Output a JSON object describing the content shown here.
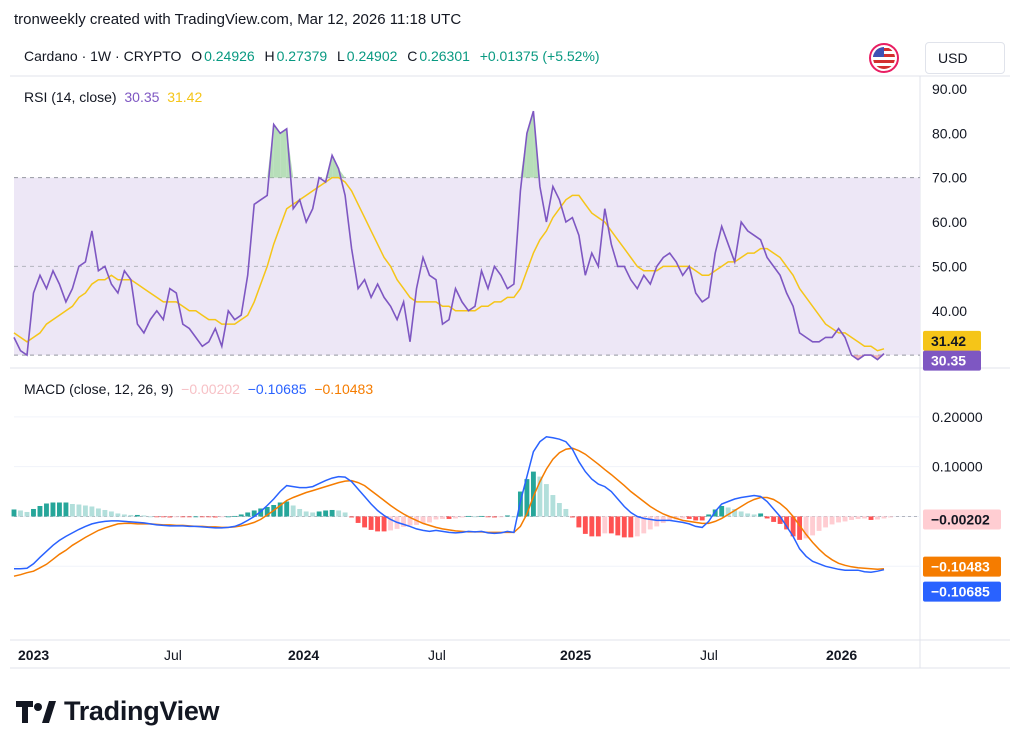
{
  "header": {
    "caption": "tronweekly created with TradingView.com, Mar 12, 2026 11:18 UTC"
  },
  "legend": {
    "symbol": "Cardano · 1W · CRYPTO",
    "o_label": "O",
    "o_value": "0.24926",
    "h_label": "H",
    "h_value": "0.27379",
    "l_label": "L",
    "l_value": "0.24902",
    "c_label": "C",
    "c_value": "0.26301",
    "change": "+0.01375 (+5.52%)"
  },
  "currency": "USD",
  "brand": {
    "name": "TradingView"
  },
  "colors": {
    "rsi": "#7e57c2",
    "rsi_ma": "#f5c518",
    "macd": "#2962ff",
    "signal": "#f57c00",
    "hist_up_strong": "#26a69a",
    "hist_up_weak": "#b2dfdb",
    "hist_down_strong": "#ff5252",
    "hist_down_weak": "#ffcdd2",
    "band_fill": "#ede7f6",
    "up": "#089981"
  },
  "chart_data": [
    {
      "type": "line",
      "title": "RSI (14, close)",
      "legend_values": [
        "30.35",
        "31.42"
      ],
      "ylim": [
        28,
        92
      ],
      "yticks": [
        "90.00",
        "80.00",
        "70.00",
        "60.00",
        "50.00",
        "40.00"
      ],
      "band": [
        30,
        70
      ],
      "midline": 50,
      "last_labels": [
        "31.42",
        "30.35"
      ],
      "series": [
        {
          "name": "RSI",
          "values": [
            34,
            31,
            30,
            44,
            48,
            45,
            49,
            46,
            42,
            45,
            50,
            51,
            58,
            49,
            50,
            46,
            44,
            49,
            47,
            37,
            35,
            38,
            40,
            38,
            45,
            44,
            37,
            36,
            34,
            32,
            33,
            36,
            32,
            40,
            38,
            39,
            48,
            64,
            65,
            66,
            82,
            80,
            81,
            63,
            65,
            60,
            63,
            70,
            69,
            75,
            72,
            66,
            54,
            45,
            47,
            43,
            46,
            43,
            41,
            38,
            42,
            33,
            45,
            52,
            48,
            47,
            37,
            38,
            45,
            42,
            40,
            41,
            49,
            45,
            50,
            48,
            45,
            46,
            67,
            80,
            85,
            68,
            60,
            68,
            65,
            60,
            61,
            57,
            48,
            53,
            50,
            63,
            55,
            50,
            50,
            47,
            45,
            48,
            46,
            50,
            52,
            53,
            51,
            48,
            50,
            44,
            42,
            43,
            53,
            59,
            55,
            51,
            60,
            58,
            57,
            56,
            52,
            50,
            48,
            44,
            41,
            35,
            34,
            33,
            33,
            34,
            34,
            36,
            34,
            30,
            29,
            30,
            30,
            29,
            30.35
          ]
        },
        {
          "name": "RSI MA",
          "values": [
            35,
            34,
            33,
            34,
            35,
            37,
            38,
            39,
            40,
            41,
            43,
            44,
            46,
            47,
            47,
            48,
            47,
            47,
            47,
            46,
            45,
            44,
            43,
            42,
            42,
            42,
            41,
            40,
            40,
            39,
            38,
            38,
            37,
            37,
            37,
            38,
            39,
            42,
            46,
            50,
            55,
            59,
            63,
            64,
            65,
            66,
            67,
            68,
            69,
            70,
            70,
            69,
            67,
            64,
            61,
            58,
            55,
            52,
            50,
            47,
            45,
            43,
            42,
            42,
            42,
            42,
            41,
            41,
            40,
            40,
            40,
            40,
            41,
            41,
            42,
            42,
            43,
            43,
            45,
            49,
            53,
            56,
            58,
            61,
            63,
            65,
            66,
            66,
            64,
            62,
            61,
            60,
            58,
            56,
            54,
            52,
            50,
            49,
            49,
            49,
            50,
            50,
            50,
            50,
            50,
            49,
            48,
            48,
            49,
            50,
            51,
            51,
            52,
            53,
            53,
            54,
            54,
            53,
            52,
            50,
            48,
            45,
            43,
            41,
            39,
            37,
            36,
            35,
            35,
            34,
            33,
            32,
            32,
            31,
            31.42
          ]
        }
      ]
    },
    {
      "type": "line",
      "title": "MACD (close, 12, 26, 9)",
      "legend_values": [
        "−0.00202",
        "−0.10685",
        "−0.10483"
      ],
      "ylim": [
        -0.24,
        0.29
      ],
      "yticks": [
        "0.20000",
        "0.10000"
      ],
      "last_labels": [
        "−0.00202",
        "−0.10483",
        "−0.10685"
      ],
      "x_labels": [
        "2023",
        "Jul",
        "2024",
        "Jul",
        "2025",
        "Jul",
        "2026"
      ],
      "series": [
        {
          "name": "MACD",
          "values": [
            -0.105,
            -0.105,
            -0.104,
            -0.095,
            -0.082,
            -0.07,
            -0.058,
            -0.048,
            -0.04,
            -0.033,
            -0.026,
            -0.02,
            -0.015,
            -0.012,
            -0.01,
            -0.009,
            -0.009,
            -0.01,
            -0.011,
            -0.012,
            -0.013,
            -0.015,
            -0.017,
            -0.018,
            -0.019,
            -0.019,
            -0.019,
            -0.02,
            -0.02,
            -0.021,
            -0.022,
            -0.023,
            -0.023,
            -0.022,
            -0.02,
            -0.015,
            -0.008,
            0.0,
            0.01,
            0.022,
            0.035,
            0.05,
            0.062,
            0.06,
            0.058,
            0.058,
            0.06,
            0.066,
            0.072,
            0.077,
            0.08,
            0.079,
            0.07,
            0.055,
            0.04,
            0.025,
            0.012,
            0.002,
            -0.006,
            -0.012,
            -0.016,
            -0.02,
            -0.025,
            -0.028,
            -0.03,
            -0.028,
            -0.03,
            -0.032,
            -0.033,
            -0.032,
            -0.03,
            -0.031,
            -0.03,
            -0.033,
            -0.034,
            -0.033,
            -0.03,
            -0.032,
            0.03,
            0.08,
            0.13,
            0.15,
            0.16,
            0.158,
            0.155,
            0.15,
            0.135,
            0.11,
            0.09,
            0.075,
            0.065,
            0.06,
            0.05,
            0.035,
            0.02,
            0.008,
            0.0,
            -0.004,
            -0.006,
            -0.008,
            -0.008,
            -0.008,
            -0.01,
            -0.012,
            -0.015,
            -0.02,
            -0.022,
            -0.01,
            0.01,
            0.025,
            0.03,
            0.035,
            0.038,
            0.04,
            0.042,
            0.04,
            0.03,
            0.015,
            0.0,
            -0.02,
            -0.04,
            -0.065,
            -0.08,
            -0.09,
            -0.095,
            -0.1,
            -0.103,
            -0.106,
            -0.108,
            -0.108,
            -0.108,
            -0.111,
            -0.112,
            -0.11,
            -0.10685
          ]
        },
        {
          "name": "Signal",
          "values": [
            -0.12,
            -0.117,
            -0.113,
            -0.11,
            -0.103,
            -0.096,
            -0.086,
            -0.076,
            -0.068,
            -0.058,
            -0.05,
            -0.042,
            -0.035,
            -0.028,
            -0.023,
            -0.019,
            -0.015,
            -0.014,
            -0.014,
            -0.015,
            -0.015,
            -0.015,
            -0.016,
            -0.017,
            -0.017,
            -0.018,
            -0.018,
            -0.019,
            -0.02,
            -0.02,
            -0.021,
            -0.021,
            -0.022,
            -0.022,
            -0.021,
            -0.019,
            -0.016,
            -0.012,
            -0.006,
            0.003,
            0.012,
            0.022,
            0.032,
            0.038,
            0.043,
            0.048,
            0.052,
            0.056,
            0.06,
            0.064,
            0.068,
            0.071,
            0.072,
            0.068,
            0.062,
            0.052,
            0.042,
            0.032,
            0.022,
            0.013,
            0.005,
            -0.002,
            -0.008,
            -0.014,
            -0.018,
            -0.022,
            -0.025,
            -0.027,
            -0.029,
            -0.03,
            -0.031,
            -0.031,
            -0.031,
            -0.032,
            -0.032,
            -0.032,
            -0.032,
            -0.032,
            -0.02,
            0.005,
            0.04,
            0.07,
            0.095,
            0.115,
            0.128,
            0.135,
            0.137,
            0.132,
            0.125,
            0.115,
            0.105,
            0.094,
            0.084,
            0.073,
            0.062,
            0.05,
            0.04,
            0.03,
            0.02,
            0.012,
            0.005,
            0.0,
            -0.004,
            -0.008,
            -0.01,
            -0.012,
            -0.014,
            -0.014,
            -0.01,
            -0.004,
            0.004,
            0.012,
            0.02,
            0.028,
            0.034,
            0.038,
            0.038,
            0.034,
            0.026,
            0.015,
            0.0,
            -0.018,
            -0.036,
            -0.052,
            -0.066,
            -0.078,
            -0.087,
            -0.094,
            -0.098,
            -0.101,
            -0.103,
            -0.104,
            -0.105,
            -0.106,
            -0.10483
          ]
        },
        {
          "name": "Histogram",
          "values": [
            0.014,
            0.012,
            0.009,
            0.015,
            0.021,
            0.026,
            0.028,
            0.028,
            0.028,
            0.025,
            0.024,
            0.022,
            0.02,
            0.016,
            0.013,
            0.01,
            0.006,
            0.004,
            0.003,
            0.003,
            0.002,
            0.0,
            -0.001,
            -0.001,
            -0.002,
            -0.001,
            -0.001,
            -0.001,
            0.0,
            -0.001,
            -0.001,
            -0.002,
            -0.001,
            0.0,
            0.001,
            0.004,
            0.008,
            0.012,
            0.016,
            0.019,
            0.023,
            0.028,
            0.03,
            0.022,
            0.015,
            0.01,
            0.008,
            0.01,
            0.012,
            0.013,
            0.012,
            0.008,
            -0.002,
            -0.013,
            -0.022,
            -0.027,
            -0.03,
            -0.03,
            -0.028,
            -0.025,
            -0.021,
            -0.018,
            -0.017,
            -0.014,
            -0.012,
            -0.006,
            -0.005,
            -0.005,
            -0.004,
            -0.002,
            0.001,
            0.0,
            0.001,
            -0.001,
            -0.002,
            -0.001,
            0.002,
            0.0,
            0.05,
            0.075,
            0.09,
            0.08,
            0.065,
            0.043,
            0.027,
            0.015,
            -0.002,
            -0.022,
            -0.035,
            -0.04,
            -0.04,
            -0.034,
            -0.034,
            -0.038,
            -0.042,
            -0.042,
            -0.04,
            -0.034,
            -0.026,
            -0.02,
            -0.013,
            -0.008,
            -0.006,
            -0.004,
            -0.005,
            -0.008,
            -0.008,
            0.004,
            0.014,
            0.021,
            0.018,
            0.015,
            0.01,
            0.006,
            0.004,
            0.006,
            -0.004,
            -0.011,
            -0.015,
            -0.026,
            -0.04,
            -0.047,
            -0.044,
            -0.038,
            -0.029,
            -0.022,
            -0.016,
            -0.012,
            -0.01,
            -0.007,
            -0.005,
            -0.004,
            -0.007,
            -0.006,
            -0.004,
            -0.00202
          ]
        }
      ]
    }
  ]
}
